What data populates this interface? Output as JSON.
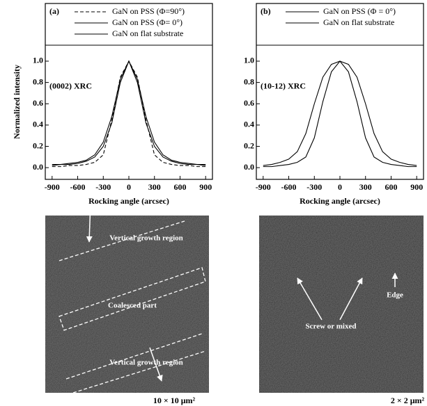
{
  "chart_data": [
    {
      "type": "line",
      "panel": "(a)",
      "annotation": "(0002) XRC",
      "ylabel": "Normalized intensity",
      "xlabel": "Rocking angle (arcsec)",
      "x": [
        -900,
        -800,
        -700,
        -600,
        -500,
        -400,
        -300,
        -200,
        -100,
        0,
        100,
        200,
        300,
        400,
        500,
        600,
        700,
        800,
        900
      ],
      "series": [
        {
          "name": "GaN on PSS (Φ=90°)",
          "color": "#000",
          "dash": true,
          "values": [
            0.01,
            0.01,
            0.02,
            0.02,
            0.03,
            0.05,
            0.12,
            0.45,
            0.85,
            1.0,
            0.85,
            0.45,
            0.12,
            0.05,
            0.03,
            0.02,
            0.02,
            0.01,
            0.01
          ]
        },
        {
          "name": "GaN on PSS (Φ= 0°)",
          "color": "#000",
          "dash": false,
          "values": [
            0.02,
            0.03,
            0.03,
            0.04,
            0.06,
            0.1,
            0.2,
            0.42,
            0.8,
            1.0,
            0.8,
            0.42,
            0.2,
            0.1,
            0.06,
            0.04,
            0.03,
            0.03,
            0.02
          ]
        },
        {
          "name": "GaN on flat substrate",
          "color": "#000",
          "dash": false,
          "values": [
            0.03,
            0.03,
            0.04,
            0.05,
            0.07,
            0.12,
            0.24,
            0.48,
            0.83,
            1.0,
            0.83,
            0.48,
            0.24,
            0.12,
            0.07,
            0.05,
            0.04,
            0.03,
            0.03
          ]
        }
      ],
      "xlim": [
        -980,
        980
      ],
      "xticks": [
        -900,
        -600,
        -300,
        0,
        300,
        600,
        900
      ],
      "ylim": [
        -0.11,
        1.15
      ],
      "yticks": [
        {
          "value": 0,
          "label": "0.0"
        },
        {
          "value": 0.2,
          "label": "0.2"
        },
        {
          "value": 0.4,
          "label": "0.4"
        },
        {
          "value": 0.6,
          "label": "0.6"
        },
        {
          "value": 0.8,
          "label": "0.8"
        },
        {
          "value": 1,
          "label": "1.0"
        }
      ]
    },
    {
      "type": "line",
      "panel": "(b)",
      "annotation": "(10-12) XRC",
      "xlabel": "Rocking angle (arcsec)",
      "x": [
        -900,
        -800,
        -700,
        -600,
        -500,
        -400,
        -300,
        -200,
        -100,
        0,
        100,
        200,
        300,
        400,
        500,
        600,
        700,
        800,
        900
      ],
      "series": [
        {
          "name": "GaN on PSS (Φ = 0°)",
          "color": "#000",
          "dash": false,
          "values": [
            0.01,
            0.01,
            0.02,
            0.03,
            0.05,
            0.1,
            0.28,
            0.62,
            0.9,
            1.0,
            0.9,
            0.62,
            0.28,
            0.1,
            0.05,
            0.03,
            0.02,
            0.01,
            0.01
          ]
        },
        {
          "name": "GaN on flat substrate",
          "color": "#000",
          "dash": false,
          "values": [
            0.02,
            0.03,
            0.05,
            0.08,
            0.15,
            0.32,
            0.6,
            0.85,
            0.97,
            1.0,
            0.97,
            0.85,
            0.6,
            0.32,
            0.15,
            0.08,
            0.05,
            0.03,
            0.02
          ]
        }
      ],
      "xlim": [
        -980,
        980
      ],
      "xticks": [
        -900,
        -600,
        -300,
        0,
        300,
        600,
        900
      ],
      "ylim": [
        -0.11,
        1.15
      ],
      "yticks": [
        {
          "value": 0,
          "label": "0.0"
        },
        {
          "value": 0.2,
          "label": "0.2"
        },
        {
          "value": 0.4,
          "label": "0.4"
        },
        {
          "value": 0.6,
          "label": "0.6"
        },
        {
          "value": 0.8,
          "label": "0.8"
        },
        {
          "value": 1,
          "label": "1.0"
        }
      ]
    }
  ],
  "images": [
    {
      "labels": [
        "Vertical growth region",
        "Coalesced part",
        "Vertical growth region"
      ],
      "caption": "10 × 10 μm²"
    },
    {
      "labels": [
        "Screw or mixed",
        "Edge"
      ],
      "caption": "2 × 2 μm²"
    }
  ]
}
